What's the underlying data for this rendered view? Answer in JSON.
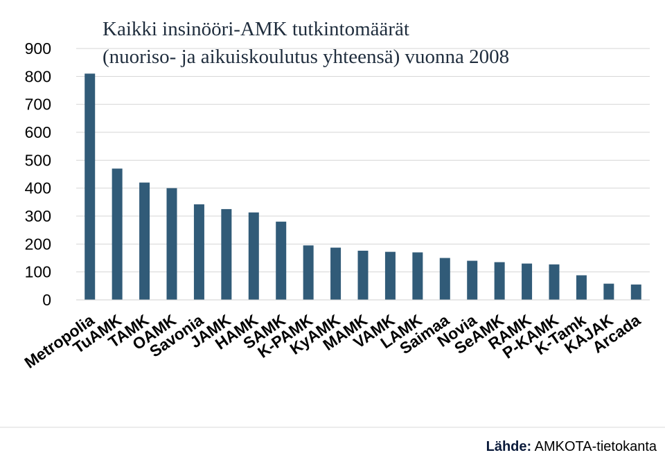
{
  "chart_data": {
    "type": "bar",
    "title_lines": [
      "Kaikki insinööri-AMK tutkintomäärät",
      "(nuoriso- ja aikuiskoulutus yhteensä) vuonna 2008"
    ],
    "categories": [
      "Metropolia",
      "TuAMK",
      "TAMK",
      "OAMK",
      "Savonia",
      "JAMK",
      "HAMK",
      "SAMK",
      "K-PAMK",
      "KyAMK",
      "MAMK",
      "VAMK",
      "LAMK",
      "Saimaa",
      "Novia",
      "SeAMK",
      "RAMK",
      "P-KAMK",
      "K-Tamk",
      "KAJAK",
      "Arcada"
    ],
    "values": [
      810,
      470,
      420,
      400,
      342,
      325,
      313,
      280,
      195,
      187,
      176,
      172,
      170,
      150,
      140,
      135,
      130,
      127,
      88,
      58,
      55
    ],
    "ylim": [
      0,
      900
    ],
    "yticks": [
      0,
      100,
      200,
      300,
      400,
      500,
      600,
      700,
      800,
      900
    ],
    "grid": true,
    "bar_color": "#315b78"
  },
  "source": {
    "label": "Lähde:",
    "text": "AMKOTA-tietokanta"
  }
}
